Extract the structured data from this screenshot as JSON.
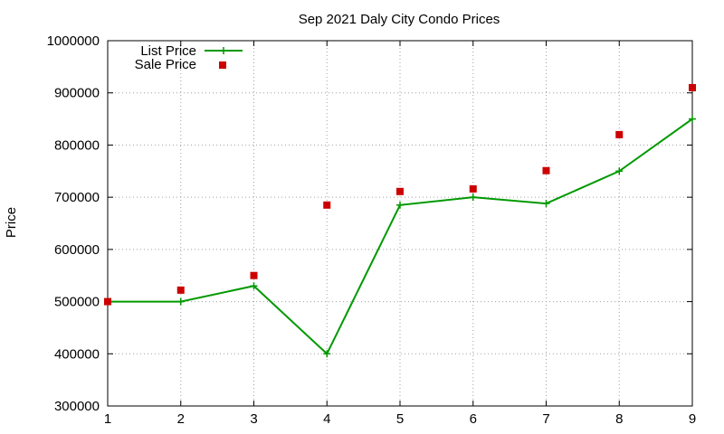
{
  "chart_data": {
    "type": "line",
    "title": "Sep 2021 Daly City Condo Prices",
    "xlabel": "",
    "ylabel": "Price",
    "x": [
      1,
      2,
      3,
      4,
      5,
      6,
      7,
      8,
      9
    ],
    "xlim": [
      1,
      9
    ],
    "ylim": [
      300000,
      1000000
    ],
    "x_ticks": [
      "1",
      "2",
      "3",
      "4",
      "5",
      "6",
      "7",
      "8",
      "9"
    ],
    "y_ticks": [
      "300000",
      "400000",
      "500000",
      "600000",
      "700000",
      "800000",
      "900000",
      "1000000"
    ],
    "grid": true,
    "legend_position": "top-left",
    "series": [
      {
        "name": "List Price",
        "style": "line-with-plus-markers",
        "color": "#009900",
        "values": [
          500000,
          500000,
          530000,
          400000,
          685000,
          700000,
          688000,
          750000,
          850000
        ]
      },
      {
        "name": "Sale Price",
        "style": "square-markers",
        "color": "#cc0000",
        "values": [
          500000,
          522000,
          550000,
          685000,
          711000,
          716000,
          751000,
          820000,
          910000
        ]
      }
    ]
  }
}
